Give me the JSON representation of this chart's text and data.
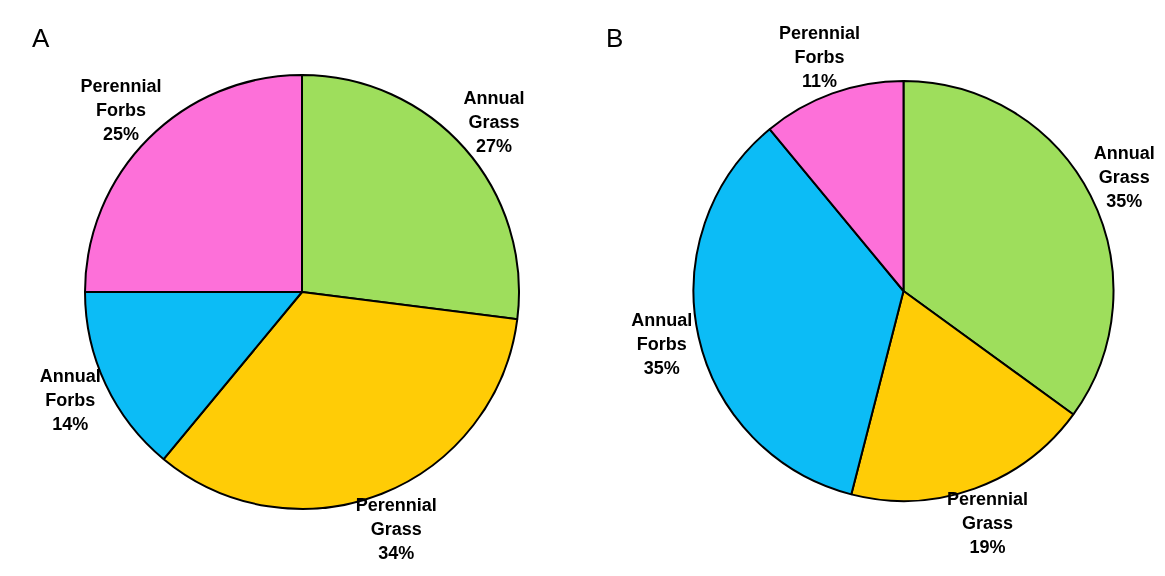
{
  "chart_data": [
    {
      "type": "pie",
      "title": "A",
      "categories": [
        "Annual Grass",
        "Perennial Grass",
        "Annual Forbs",
        "Perennial Forbs"
      ],
      "values": [
        27,
        34,
        14,
        25
      ],
      "value_labels": [
        "27%",
        "34%",
        "14%",
        "25%"
      ],
      "colors": [
        "#9ede5c",
        "#ffcc06",
        "#0cbcf6",
        "#fd70d9"
      ]
    },
    {
      "type": "pie",
      "title": "B",
      "categories": [
        "Annual Grass",
        "Perennial Grass",
        "Annual Forbs",
        "Perennial Forbs"
      ],
      "values": [
        35,
        19,
        35,
        11
      ],
      "value_labels": [
        "35%",
        "19%",
        "35%",
        "11%"
      ],
      "colors": [
        "#9ede5c",
        "#ffcc06",
        "#0cbcf6",
        "#fd70d9"
      ]
    }
  ]
}
